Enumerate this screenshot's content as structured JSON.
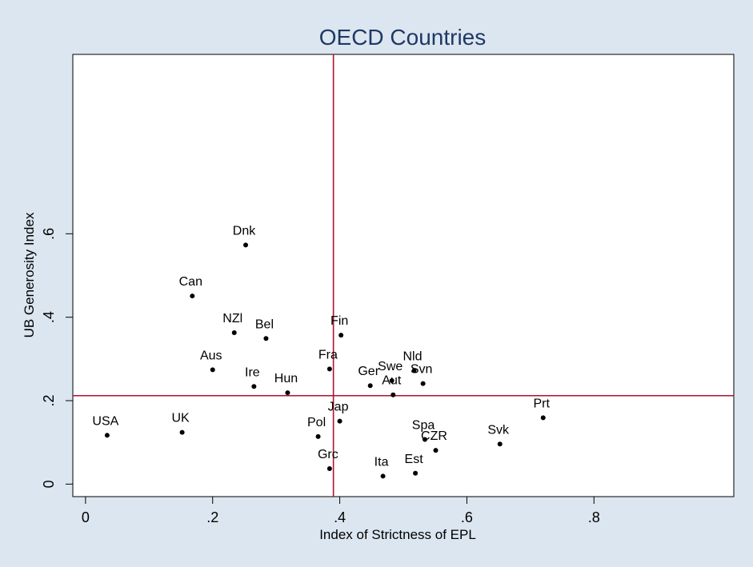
{
  "chart_data": {
    "type": "scatter",
    "title": "OECD Countries",
    "xlabel": "Index of Strictness of EPL",
    "ylabel": "UB Generosity Index",
    "xlim": [
      -0.02,
      1.02
    ],
    "ylim": [
      -0.03,
      1.03
    ],
    "xticks": [
      0,
      0.2,
      0.4,
      0.6,
      0.8
    ],
    "xtick_labels": [
      "0",
      ".2",
      ".4",
      ".6",
      ".8"
    ],
    "yticks": [
      0,
      0.2,
      0.4,
      0.6
    ],
    "ytick_labels": [
      "0",
      ".2",
      ".4",
      ".6"
    ],
    "grid": false,
    "reference_lines": {
      "x": 0.39,
      "y": 0.212,
      "color": "#b0122e"
    },
    "marker_color": "#000000",
    "points": [
      {
        "label": "USA",
        "x": 0.034,
        "y": 0.117
      },
      {
        "label": "UK",
        "x": 0.152,
        "y": 0.124
      },
      {
        "label": "Can",
        "x": 0.168,
        "y": 0.451
      },
      {
        "label": "Aus",
        "x": 0.2,
        "y": 0.274
      },
      {
        "label": "NZl",
        "x": 0.234,
        "y": 0.363
      },
      {
        "label": "Dnk",
        "x": 0.252,
        "y": 0.573
      },
      {
        "label": "Ire",
        "x": 0.265,
        "y": 0.234
      },
      {
        "label": "Bel",
        "x": 0.284,
        "y": 0.349
      },
      {
        "label": "Hun",
        "x": 0.318,
        "y": 0.219
      },
      {
        "label": "Pol",
        "x": 0.366,
        "y": 0.114
      },
      {
        "label": "Grc",
        "x": 0.384,
        "y": 0.037
      },
      {
        "label": "Fra",
        "x": 0.384,
        "y": 0.276
      },
      {
        "label": "Jap",
        "x": 0.4,
        "y": 0.151
      },
      {
        "label": "Fin",
        "x": 0.402,
        "y": 0.357
      },
      {
        "label": "Ger",
        "x": 0.448,
        "y": 0.236
      },
      {
        "label": "Ita",
        "x": 0.468,
        "y": 0.019
      },
      {
        "label": "Swe",
        "x": 0.482,
        "y": 0.248
      },
      {
        "label": "Aut",
        "x": 0.484,
        "y": 0.214
      },
      {
        "label": "Nld",
        "x": 0.517,
        "y": 0.272
      },
      {
        "label": "Est",
        "x": 0.519,
        "y": 0.026
      },
      {
        "label": "Svn",
        "x": 0.531,
        "y": 0.241
      },
      {
        "label": "Spa",
        "x": 0.534,
        "y": 0.107
      },
      {
        "label": "CZR",
        "x": 0.551,
        "y": 0.081
      },
      {
        "label": "Svk",
        "x": 0.652,
        "y": 0.096
      },
      {
        "label": "Prt",
        "x": 0.72,
        "y": 0.159
      }
    ]
  }
}
